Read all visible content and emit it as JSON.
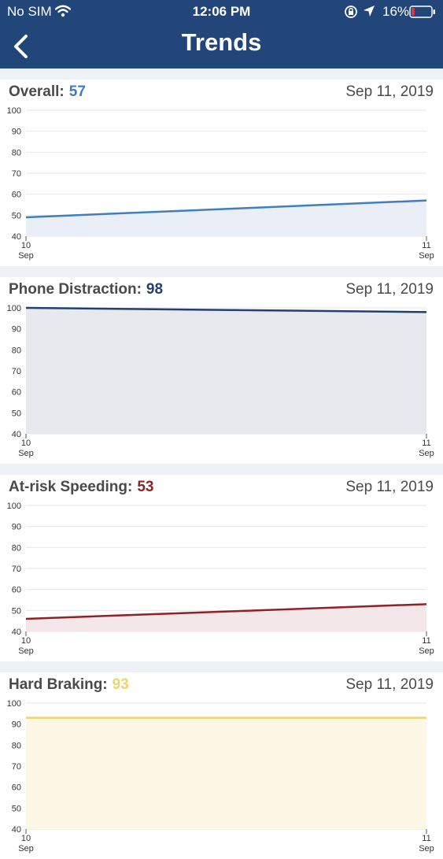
{
  "status_bar": {
    "carrier": "No SIM",
    "time": "12:06 PM",
    "battery_percent": "16%",
    "battery_level": 0.16
  },
  "header": {
    "title": "Trends"
  },
  "y_ticks": [
    "100",
    "90",
    "80",
    "70",
    "60",
    "50",
    "40"
  ],
  "cards": [
    {
      "metric_label": "Overall:",
      "value": "57",
      "date": "Sep 11, 2019",
      "color": "#3f7fc1",
      "fill": "#e9eef7",
      "chart_data": {
        "type": "area",
        "x": [
          "10 Sep",
          "11 Sep"
        ],
        "y": [
          49,
          57
        ],
        "ylim": [
          40,
          100
        ],
        "yticks": [
          40,
          50,
          60,
          70,
          80,
          90,
          100
        ]
      }
    },
    {
      "metric_label": "Phone Distraction:",
      "value": "98",
      "date": "Sep 11, 2019",
      "color": "#22416f",
      "fill": "#e7e9ef",
      "chart_data": {
        "type": "area",
        "x": [
          "10 Sep",
          "11 Sep"
        ],
        "y": [
          100,
          98
        ],
        "ylim": [
          40,
          100
        ],
        "yticks": [
          40,
          50,
          60,
          70,
          80,
          90,
          100
        ]
      }
    },
    {
      "metric_label": "At-risk Speeding:",
      "value": "53",
      "date": "Sep 11, 2019",
      "color": "#8e2226",
      "fill": "#f3e7ea",
      "chart_data": {
        "type": "area",
        "x": [
          "10 Sep",
          "11 Sep"
        ],
        "y": [
          46,
          53
        ],
        "ylim": [
          40,
          100
        ],
        "yticks": [
          40,
          50,
          60,
          70,
          80,
          90,
          100
        ]
      }
    },
    {
      "metric_label": "Hard Braking:",
      "value": "93",
      "date": "Sep 11, 2019",
      "color": "#f0d36a",
      "fill": "#fdf8e6",
      "chart_data": {
        "type": "area",
        "x": [
          "10 Sep",
          "11 Sep"
        ],
        "y": [
          93,
          93
        ],
        "ylim": [
          40,
          100
        ],
        "yticks": [
          40,
          50,
          60,
          70,
          80,
          90,
          100
        ]
      }
    }
  ]
}
